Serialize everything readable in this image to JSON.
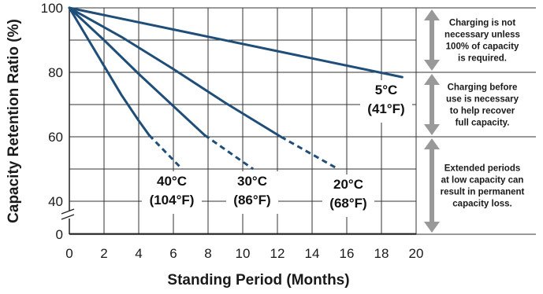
{
  "chart_data": {
    "type": "line",
    "xlabel": "Standing Period (Months)",
    "ylabel": "Capacity Retention Ratio (%)",
    "xlim": [
      0,
      20
    ],
    "ylim": [
      0,
      100
    ],
    "x_ticks": [
      "0",
      "2",
      "4",
      "6",
      "8",
      "10",
      "12",
      "14",
      "16",
      "18",
      "20"
    ],
    "y_ticks": [
      {
        "value": 100,
        "label": "100"
      },
      {
        "value": 80,
        "label": "80"
      },
      {
        "value": 60,
        "label": "60"
      },
      {
        "value": 40,
        "label": "40"
      },
      {
        "value": 0,
        "label": "0"
      }
    ],
    "axis_break": true,
    "grid": true,
    "color": "#1f4e79",
    "series": [
      {
        "name": "5°C (41°F)",
        "label_lines": [
          "5°C",
          "(41°F)"
        ],
        "solid": [
          [
            0,
            100
          ],
          [
            19.2,
            78.5
          ]
        ],
        "dashed": []
      },
      {
        "name": "20°C (68°F)",
        "label_lines": [
          "20°C",
          "(68°F)"
        ],
        "solid": [
          [
            0,
            100
          ],
          [
            3,
            91
          ],
          [
            6,
            81
          ],
          [
            9,
            70.5
          ],
          [
            12.2,
            60
          ]
        ],
        "dashed": [
          [
            12.2,
            60
          ],
          [
            15.5,
            50
          ]
        ]
      },
      {
        "name": "30°C (86°F)",
        "label_lines": [
          "30°C",
          "(86°F)"
        ],
        "solid": [
          [
            0,
            100
          ],
          [
            2,
            90
          ],
          [
            4,
            79.5
          ],
          [
            6,
            69.5
          ],
          [
            7.8,
            60.5
          ]
        ],
        "dashed": [
          [
            7.8,
            60.5
          ],
          [
            10.6,
            50
          ]
        ]
      },
      {
        "name": "40°C (104°F)",
        "label_lines": [
          "40°C",
          "(104°F)"
        ],
        "solid": [
          [
            0,
            100
          ],
          [
            1,
            91
          ],
          [
            2,
            82
          ],
          [
            3,
            73
          ],
          [
            4,
            65
          ],
          [
            4.6,
            60.5
          ]
        ],
        "dashed": [
          [
            4.6,
            60.5
          ],
          [
            6.5,
            50
          ]
        ]
      }
    ],
    "annotations": [
      {
        "text_lines": [
          "Charging is not",
          "necessary unless",
          "100% of capacity",
          "is required."
        ],
        "y_range": [
          80,
          100
        ]
      },
      {
        "text_lines": [
          "Charging before",
          "use is necessary",
          "to help recover",
          "full capacity."
        ],
        "y_range": [
          60,
          80
        ]
      },
      {
        "text_lines": [
          "Extended periods",
          "at low capacity can",
          "result in permanent",
          "capacity loss."
        ],
        "y_range": [
          0,
          60
        ]
      }
    ]
  }
}
